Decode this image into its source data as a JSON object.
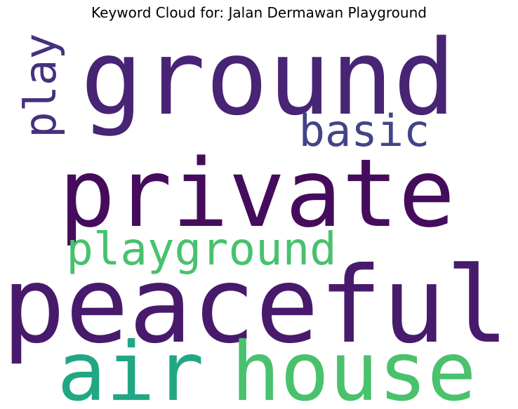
{
  "title": "Keyword Cloud for: Jalan Dermawan Playground",
  "words": [
    {
      "text": "ground",
      "color": "#482474"
    },
    {
      "text": "private",
      "color": "#450c5c"
    },
    {
      "text": "peaceful",
      "color": "#481a6c"
    },
    {
      "text": "air",
      "color": "#22a784"
    },
    {
      "text": "house",
      "color": "#4ac16d"
    },
    {
      "text": "playground",
      "color": "#48c16e"
    },
    {
      "text": "basic",
      "color": "#414487"
    },
    {
      "text": "play",
      "color": "#46317e"
    }
  ]
}
